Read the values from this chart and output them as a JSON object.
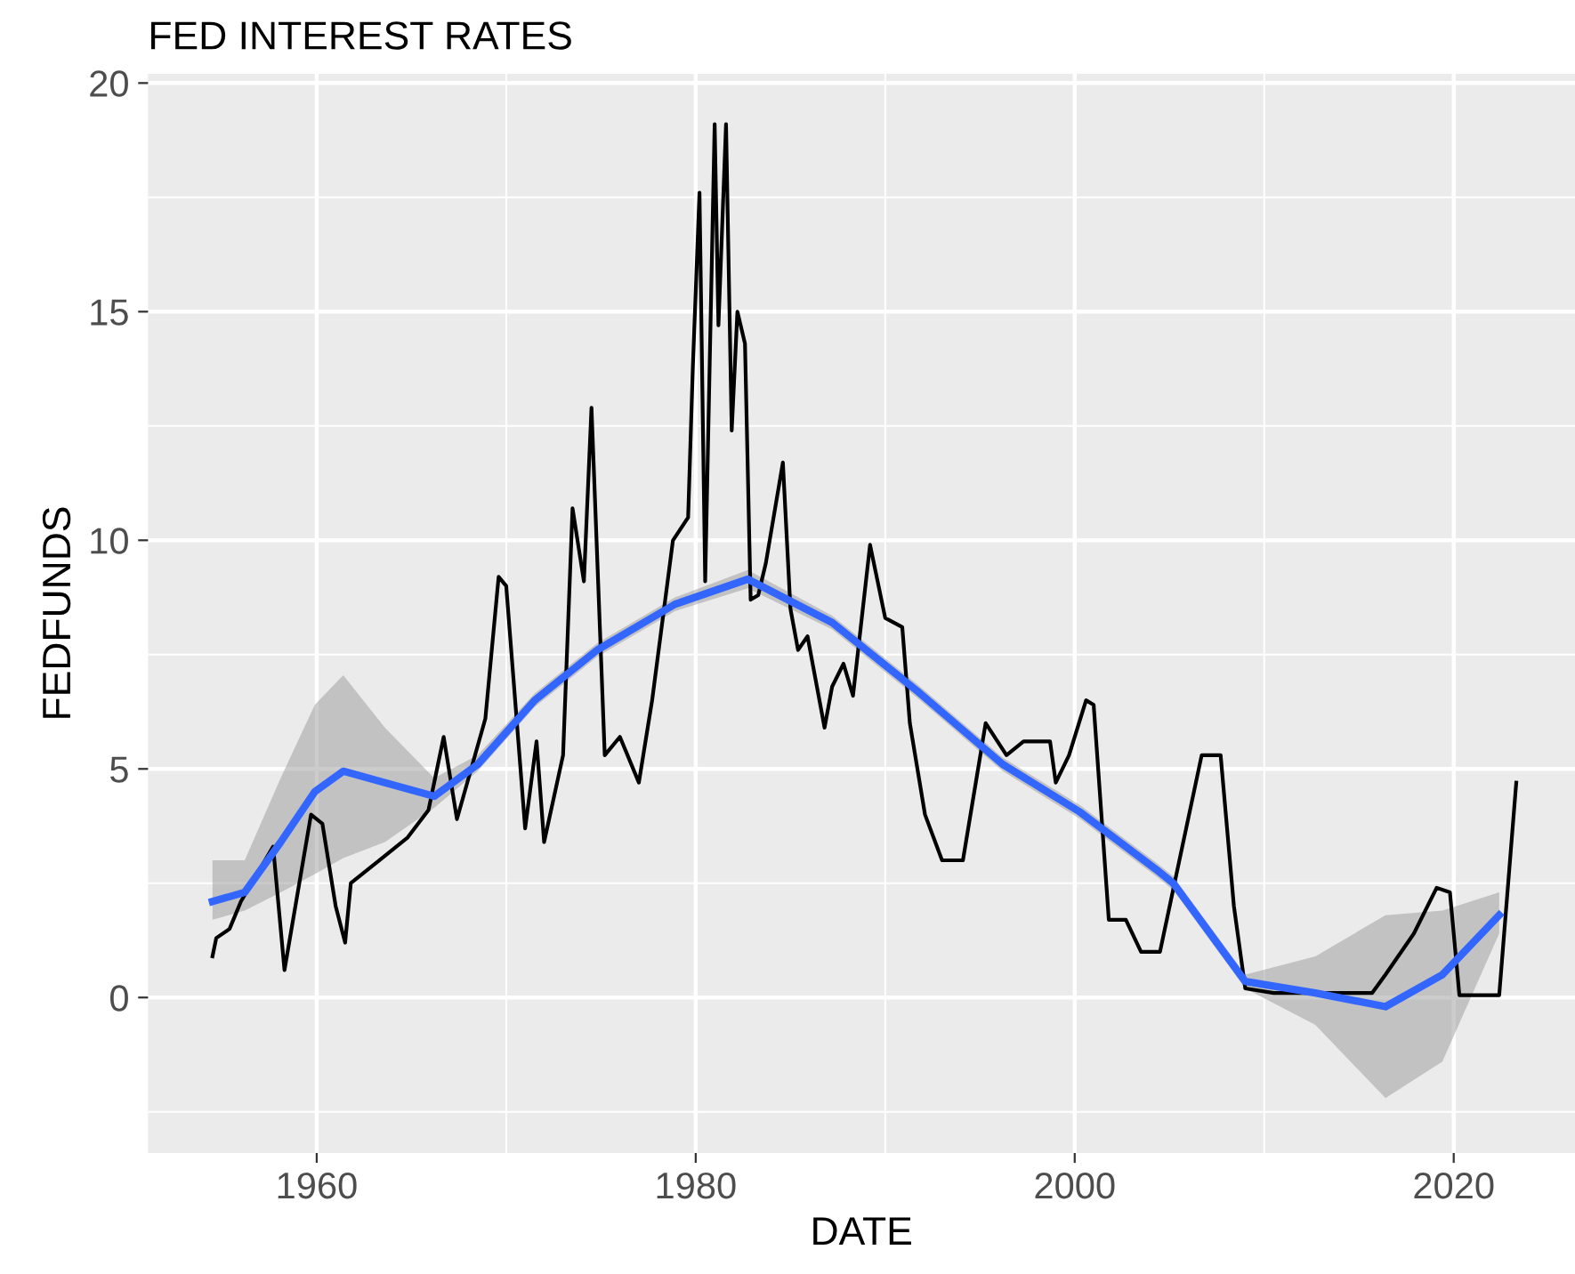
{
  "chart_data": {
    "type": "line",
    "title": "FED INTEREST RATES",
    "xlabel": "DATE",
    "ylabel": "FEDFUNDS",
    "xlim": [
      1951.1,
      2026.4
    ],
    "ylim": [
      -3.4,
      20.2
    ],
    "xticks": [
      1960,
      1980,
      2000,
      2020
    ],
    "yticks": [
      0,
      5,
      10,
      15,
      20
    ],
    "grid": true,
    "series": [
      {
        "color": "#000000",
        "x": [
          1954.5,
          1954.7,
          1955.4,
          1956.0,
          1957.7,
          1958.3,
          1959.7,
          1960.3,
          1961.0,
          1961.5,
          1961.8,
          1963.3,
          1964.8,
          1965.9,
          1966.7,
          1967.4,
          1968.9,
          1969.6,
          1970.0,
          1971.0,
          1971.6,
          1972.0,
          1973.0,
          1973.5,
          1974.1,
          1974.5,
          1975.2,
          1976.0,
          1977.0,
          1977.7,
          1978.8,
          1979.6,
          1979.85,
          1980.2,
          1980.5,
          1981.0,
          1981.2,
          1981.6,
          1981.9,
          1982.2,
          1982.6,
          1982.9,
          1983.3,
          1983.7,
          1984.6,
          1985.0,
          1985.4,
          1985.9,
          1986.8,
          1987.2,
          1987.8,
          1988.3,
          1989.2,
          1990.0,
          1990.9,
          1991.3,
          1992.1,
          1993.0,
          1994.1,
          1995.3,
          1996.4,
          1997.3,
          1998.7,
          1999.0,
          1999.7,
          2000.6,
          2001.0,
          2001.8,
          2002.7,
          2003.5,
          2004.5,
          2006.7,
          2007.7,
          2008.4,
          2009.0,
          2010.5,
          2015.7,
          2016.4,
          2017.9,
          2019.1,
          2019.8,
          2020.3,
          2022.4,
          2023.3
        ],
        "values": [
          0.9,
          1.3,
          1.5,
          2.1,
          3.3,
          0.6,
          4.0,
          3.8,
          2.0,
          1.2,
          2.5,
          3.0,
          3.5,
          4.1,
          5.7,
          3.9,
          6.1,
          9.2,
          9.0,
          3.7,
          5.6,
          3.4,
          5.3,
          10.7,
          9.1,
          12.9,
          5.3,
          5.7,
          4.7,
          6.5,
          10.0,
          10.5,
          13.8,
          17.6,
          9.1,
          19.1,
          14.7,
          19.1,
          12.4,
          15.0,
          14.3,
          8.7,
          8.8,
          9.5,
          11.7,
          8.5,
          7.6,
          7.9,
          5.9,
          6.8,
          7.3,
          6.6,
          9.9,
          8.3,
          8.1,
          6.0,
          4.0,
          3.0,
          3.0,
          6.0,
          5.3,
          5.6,
          5.6,
          4.7,
          5.3,
          6.5,
          6.4,
          1.7,
          1.7,
          1.0,
          1.0,
          5.3,
          5.3,
          2.0,
          0.2,
          0.1,
          0.1,
          0.5,
          1.4,
          2.4,
          2.3,
          0.05,
          0.05,
          4.7
        ]
      },
      {
        "color": "#3366ff",
        "x": [
          1954.5,
          1956.2,
          1958.1,
          1959.9,
          1961.4,
          1963.6,
          1966.2,
          1968.5,
          1971.5,
          1974.8,
          1978.9,
          1982.75,
          1987.2,
          1991.7,
          1996.2,
          2000.3,
          2004.3,
          2005.2,
          2009.0,
          2012.7,
          2016.4,
          2019.4,
          2022.4
        ],
        "values": [
          2.1,
          2.3,
          3.4,
          4.5,
          4.95,
          4.7,
          4.4,
          5.1,
          6.5,
          7.6,
          8.6,
          9.15,
          8.2,
          6.7,
          5.1,
          4.05,
          2.8,
          2.5,
          0.35,
          0.1,
          -0.2,
          0.5,
          1.8
        ],
        "lower": [
          1.7,
          1.9,
          2.3,
          2.7,
          3.05,
          3.4,
          4.15,
          4.95,
          6.35,
          7.45,
          8.45,
          8.95,
          8.05,
          6.55,
          4.95,
          3.9,
          2.65,
          2.35,
          0.2,
          -0.6,
          -2.2,
          -1.4,
          1.4
        ],
        "upper": [
          3.0,
          3.0,
          4.8,
          6.4,
          7.05,
          5.9,
          4.8,
          5.3,
          6.65,
          7.75,
          8.75,
          9.35,
          8.35,
          6.85,
          5.25,
          4.2,
          2.95,
          2.65,
          0.5,
          0.9,
          1.8,
          1.9,
          2.3
        ]
      }
    ]
  }
}
